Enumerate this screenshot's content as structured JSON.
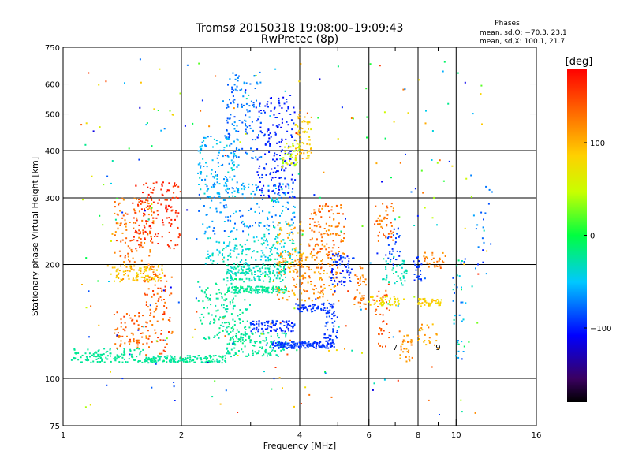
{
  "chart_data": {
    "type": "scatter",
    "title": "Tromsø 20150318 19:08:00–19:09:43",
    "subtitle": "RwPretec (8p)",
    "xlabel": "Frequency [MHz]",
    "ylabel": "Stationary phase Virtual Height [km]",
    "x_scale": "log",
    "y_scale": "log",
    "xlim": [
      1,
      16
    ],
    "ylim": [
      75,
      750
    ],
    "x_ticks": [
      1,
      2,
      4,
      6,
      8,
      10,
      16
    ],
    "x_tick_labels": [
      "1",
      "2",
      "4",
      "6",
      "8",
      "10",
      "16"
    ],
    "x_grid": [
      2,
      4,
      6,
      8,
      10
    ],
    "x_minor_ticks": [
      3,
      5,
      7,
      9
    ],
    "x_minor_tick_labels": [
      "",
      "",
      "7",
      "9"
    ],
    "y_ticks": [
      75,
      100,
      200,
      300,
      400,
      500,
      600,
      750
    ],
    "y_tick_labels": [
      "75",
      "100",
      "200",
      "300",
      "400",
      "500",
      "600",
      "750"
    ],
    "y_grid": [
      100,
      200,
      300,
      400,
      500,
      600
    ],
    "grid": true,
    "legend": {
      "heading": "Phases",
      "lines": [
        "mean, sd,O: −70.3, 23.1",
        "mean, sd,X: 100.1, 21.7"
      ],
      "placement": "top-right"
    },
    "colorbar": {
      "label": "[deg]",
      "min": -180,
      "max": 180,
      "ticks": [
        100,
        0,
        -100
      ],
      "tick_labels": [
        "100",
        "0",
        "−100"
      ],
      "colormap": "rainbow (black-purple-blue-cyan-green-yellow-orange-red)",
      "placement": "right"
    },
    "color_by": "phase_deg",
    "point_groups": [
      {
        "x": [
          1.05,
          1.6
        ],
        "y": [
          110,
          120
        ],
        "phase": [
          -25,
          -20
        ],
        "n": 120
      },
      {
        "x": [
          1.6,
          2.6
        ],
        "y": [
          110,
          115
        ],
        "phase": [
          -30,
          -15
        ],
        "n": 160
      },
      {
        "x": [
          2.6,
          3.7
        ],
        "y": [
          114,
          132
        ],
        "phase": [
          -30,
          -15
        ],
        "n": 140
      },
      {
        "x": [
          3.4,
          4.9
        ],
        "y": [
          120,
          125
        ],
        "phase": [
          -100,
          -85
        ],
        "n": 160
      },
      {
        "x": [
          4.6,
          5.0
        ],
        "y": [
          125,
          150
        ],
        "phase": [
          -100,
          -85
        ],
        "n": 40
      },
      {
        "x": [
          3.0,
          3.9
        ],
        "y": [
          133,
          142
        ],
        "phase": [
          -105,
          -85
        ],
        "n": 90
      },
      {
        "x": [
          3.9,
          4.9
        ],
        "y": [
          150,
          158
        ],
        "phase": [
          -100,
          -85
        ],
        "n": 60
      },
      {
        "x": [
          2.2,
          3.0
        ],
        "y": [
          125,
          180
        ],
        "phase": [
          -30,
          -15
        ],
        "n": 150
      },
      {
        "x": [
          2.6,
          3.7
        ],
        "y": [
          168,
          175
        ],
        "phase": [
          -30,
          -15
        ],
        "n": 130
      },
      {
        "x": [
          2.6,
          3.7
        ],
        "y": [
          180,
          200
        ],
        "phase": [
          -40,
          -20
        ],
        "n": 160
      },
      {
        "x": [
          2.3,
          3.9
        ],
        "y": [
          200,
          240
        ],
        "phase": [
          -50,
          -25
        ],
        "n": 160
      },
      {
        "x": [
          2.2,
          3.9
        ],
        "y": [
          240,
          330
        ],
        "phase": [
          -85,
          -40
        ],
        "n": 180
      },
      {
        "x": [
          2.2,
          2.8
        ],
        "y": [
          300,
          440
        ],
        "phase": [
          -75,
          -35
        ],
        "n": 130
      },
      {
        "x": [
          2.6,
          3.2
        ],
        "y": [
          380,
          650
        ],
        "phase": [
          -90,
          -60
        ],
        "n": 130
      },
      {
        "x": [
          3.1,
          3.9
        ],
        "y": [
          300,
          560
        ],
        "phase": [
          -110,
          -90
        ],
        "n": 180
      },
      {
        "x": [
          3.9,
          4.3
        ],
        "y": [
          380,
          500
        ],
        "phase": [
          70,
          110
        ],
        "n": 60
      },
      {
        "x": [
          3.6,
          4.0
        ],
        "y": [
          360,
          420
        ],
        "phase": [
          30,
          80
        ],
        "n": 50
      },
      {
        "x": [
          1.35,
          1.7
        ],
        "y": [
          180,
          300
        ],
        "phase": [
          110,
          150
        ],
        "n": 140
      },
      {
        "x": [
          1.5,
          2.0
        ],
        "y": [
          220,
          330
        ],
        "phase": [
          150,
          175
        ],
        "n": 140
      },
      {
        "x": [
          1.3,
          1.8
        ],
        "y": [
          180,
          200
        ],
        "phase": [
          70,
          110
        ],
        "n": 90
      },
      {
        "x": [
          1.35,
          1.6
        ],
        "y": [
          120,
          150
        ],
        "phase": [
          120,
          155
        ],
        "n": 70
      },
      {
        "x": [
          1.6,
          1.9
        ],
        "y": [
          115,
          190
        ],
        "phase": [
          120,
          160
        ],
        "n": 90
      },
      {
        "x": [
          3.5,
          5.1
        ],
        "y": [
          160,
          215
        ],
        "phase": [
          90,
          140
        ],
        "n": 170
      },
      {
        "x": [
          4.2,
          5.2
        ],
        "y": [
          210,
          290
        ],
        "phase": [
          110,
          150
        ],
        "n": 110
      },
      {
        "x": [
          3.5,
          4.1
        ],
        "y": [
          200,
          260
        ],
        "phase": [
          80,
          120
        ],
        "n": 60
      },
      {
        "x": [
          4.8,
          5.5
        ],
        "y": [
          175,
          215
        ],
        "phase": [
          -110,
          -80
        ],
        "n": 60
      },
      {
        "x": [
          5.5,
          5.9
        ],
        "y": [
          150,
          200
        ],
        "phase": [
          110,
          145
        ],
        "n": 40
      },
      {
        "x": [
          6.0,
          7.2
        ],
        "y": [
          155,
          165
        ],
        "phase": [
          60,
          90
        ],
        "n": 50
      },
      {
        "x": [
          6.2,
          6.8
        ],
        "y": [
          120,
          180
        ],
        "phase": [
          130,
          160
        ],
        "n": 35
      },
      {
        "x": [
          6.2,
          7.0
        ],
        "y": [
          230,
          290
        ],
        "phase": [
          110,
          150
        ],
        "n": 45
      },
      {
        "x": [
          6.6,
          7.2
        ],
        "y": [
          200,
          250
        ],
        "phase": [
          -100,
          -80
        ],
        "n": 30
      },
      {
        "x": [
          6.5,
          7.5
        ],
        "y": [
          175,
          210
        ],
        "phase": [
          -40,
          -20
        ],
        "n": 45
      },
      {
        "x": [
          7.2,
          7.8
        ],
        "y": [
          110,
          130
        ],
        "phase": [
          100,
          130
        ],
        "n": 30
      },
      {
        "x": [
          7.8,
          8.2
        ],
        "y": [
          180,
          210
        ],
        "phase": [
          -100,
          -85
        ],
        "n": 25
      },
      {
        "x": [
          8.0,
          9.2
        ],
        "y": [
          155,
          163
        ],
        "phase": [
          70,
          100
        ],
        "n": 40
      },
      {
        "x": [
          8.0,
          9.0
        ],
        "y": [
          120,
          140
        ],
        "phase": [
          90,
          130
        ],
        "n": 25
      },
      {
        "x": [
          8.2,
          9.5
        ],
        "y": [
          195,
          215
        ],
        "phase": [
          110,
          140
        ],
        "n": 30
      },
      {
        "x": [
          9.8,
          10.6
        ],
        "y": [
          110,
          210
        ],
        "phase": [
          -90,
          -10
        ],
        "n": 35
      },
      {
        "x": [
          11.0,
          12.5
        ],
        "y": [
          180,
          330
        ],
        "phase": [
          -100,
          -60
        ],
        "n": 20
      },
      {
        "x": [
          1.1,
          2.0
        ],
        "y": [
          85,
          200
        ],
        "phase": [
          -100,
          -80
        ],
        "n": 12
      },
      {
        "x": [
          1.1,
          12.0
        ],
        "y": [
          80,
          700
        ],
        "phase": [
          -120,
          170
        ],
        "n": 260
      }
    ]
  }
}
